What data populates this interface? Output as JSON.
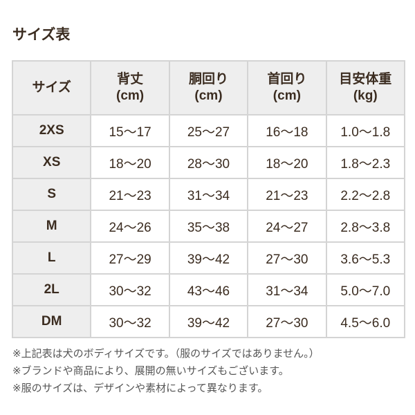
{
  "title": "サイズ表",
  "table": {
    "headers": [
      {
        "label": "サイズ",
        "unit": ""
      },
      {
        "label": "背丈",
        "unit": "(cm)"
      },
      {
        "label": "胴回り",
        "unit": "(cm)"
      },
      {
        "label": "首回り",
        "unit": "(cm)"
      },
      {
        "label": "目安体重",
        "unit": "(kg)"
      }
    ],
    "rows": [
      [
        "2XS",
        "15〜17",
        "25〜27",
        "16〜18",
        "1.0〜1.8"
      ],
      [
        "XS",
        "18〜20",
        "28〜30",
        "18〜20",
        "1.8〜2.3"
      ],
      [
        "S",
        "21〜23",
        "31〜34",
        "21〜23",
        "2.2〜2.8"
      ],
      [
        "M",
        "24〜26",
        "35〜38",
        "24〜27",
        "2.8〜3.8"
      ],
      [
        "L",
        "27〜29",
        "39〜42",
        "27〜30",
        "3.6〜5.3"
      ],
      [
        "2L",
        "30〜32",
        "43〜46",
        "31〜34",
        "5.0〜7.0"
      ],
      [
        "DM",
        "30〜32",
        "39〜42",
        "27〜30",
        "4.5〜6.0"
      ]
    ]
  },
  "notes": [
    "※上記表は犬のボディサイズです。（服のサイズではありません。）",
    "※ブランドや商品により、展開の無いサイズもございます。",
    "※服のサイズは、デザインや素材によって異なります。"
  ]
}
